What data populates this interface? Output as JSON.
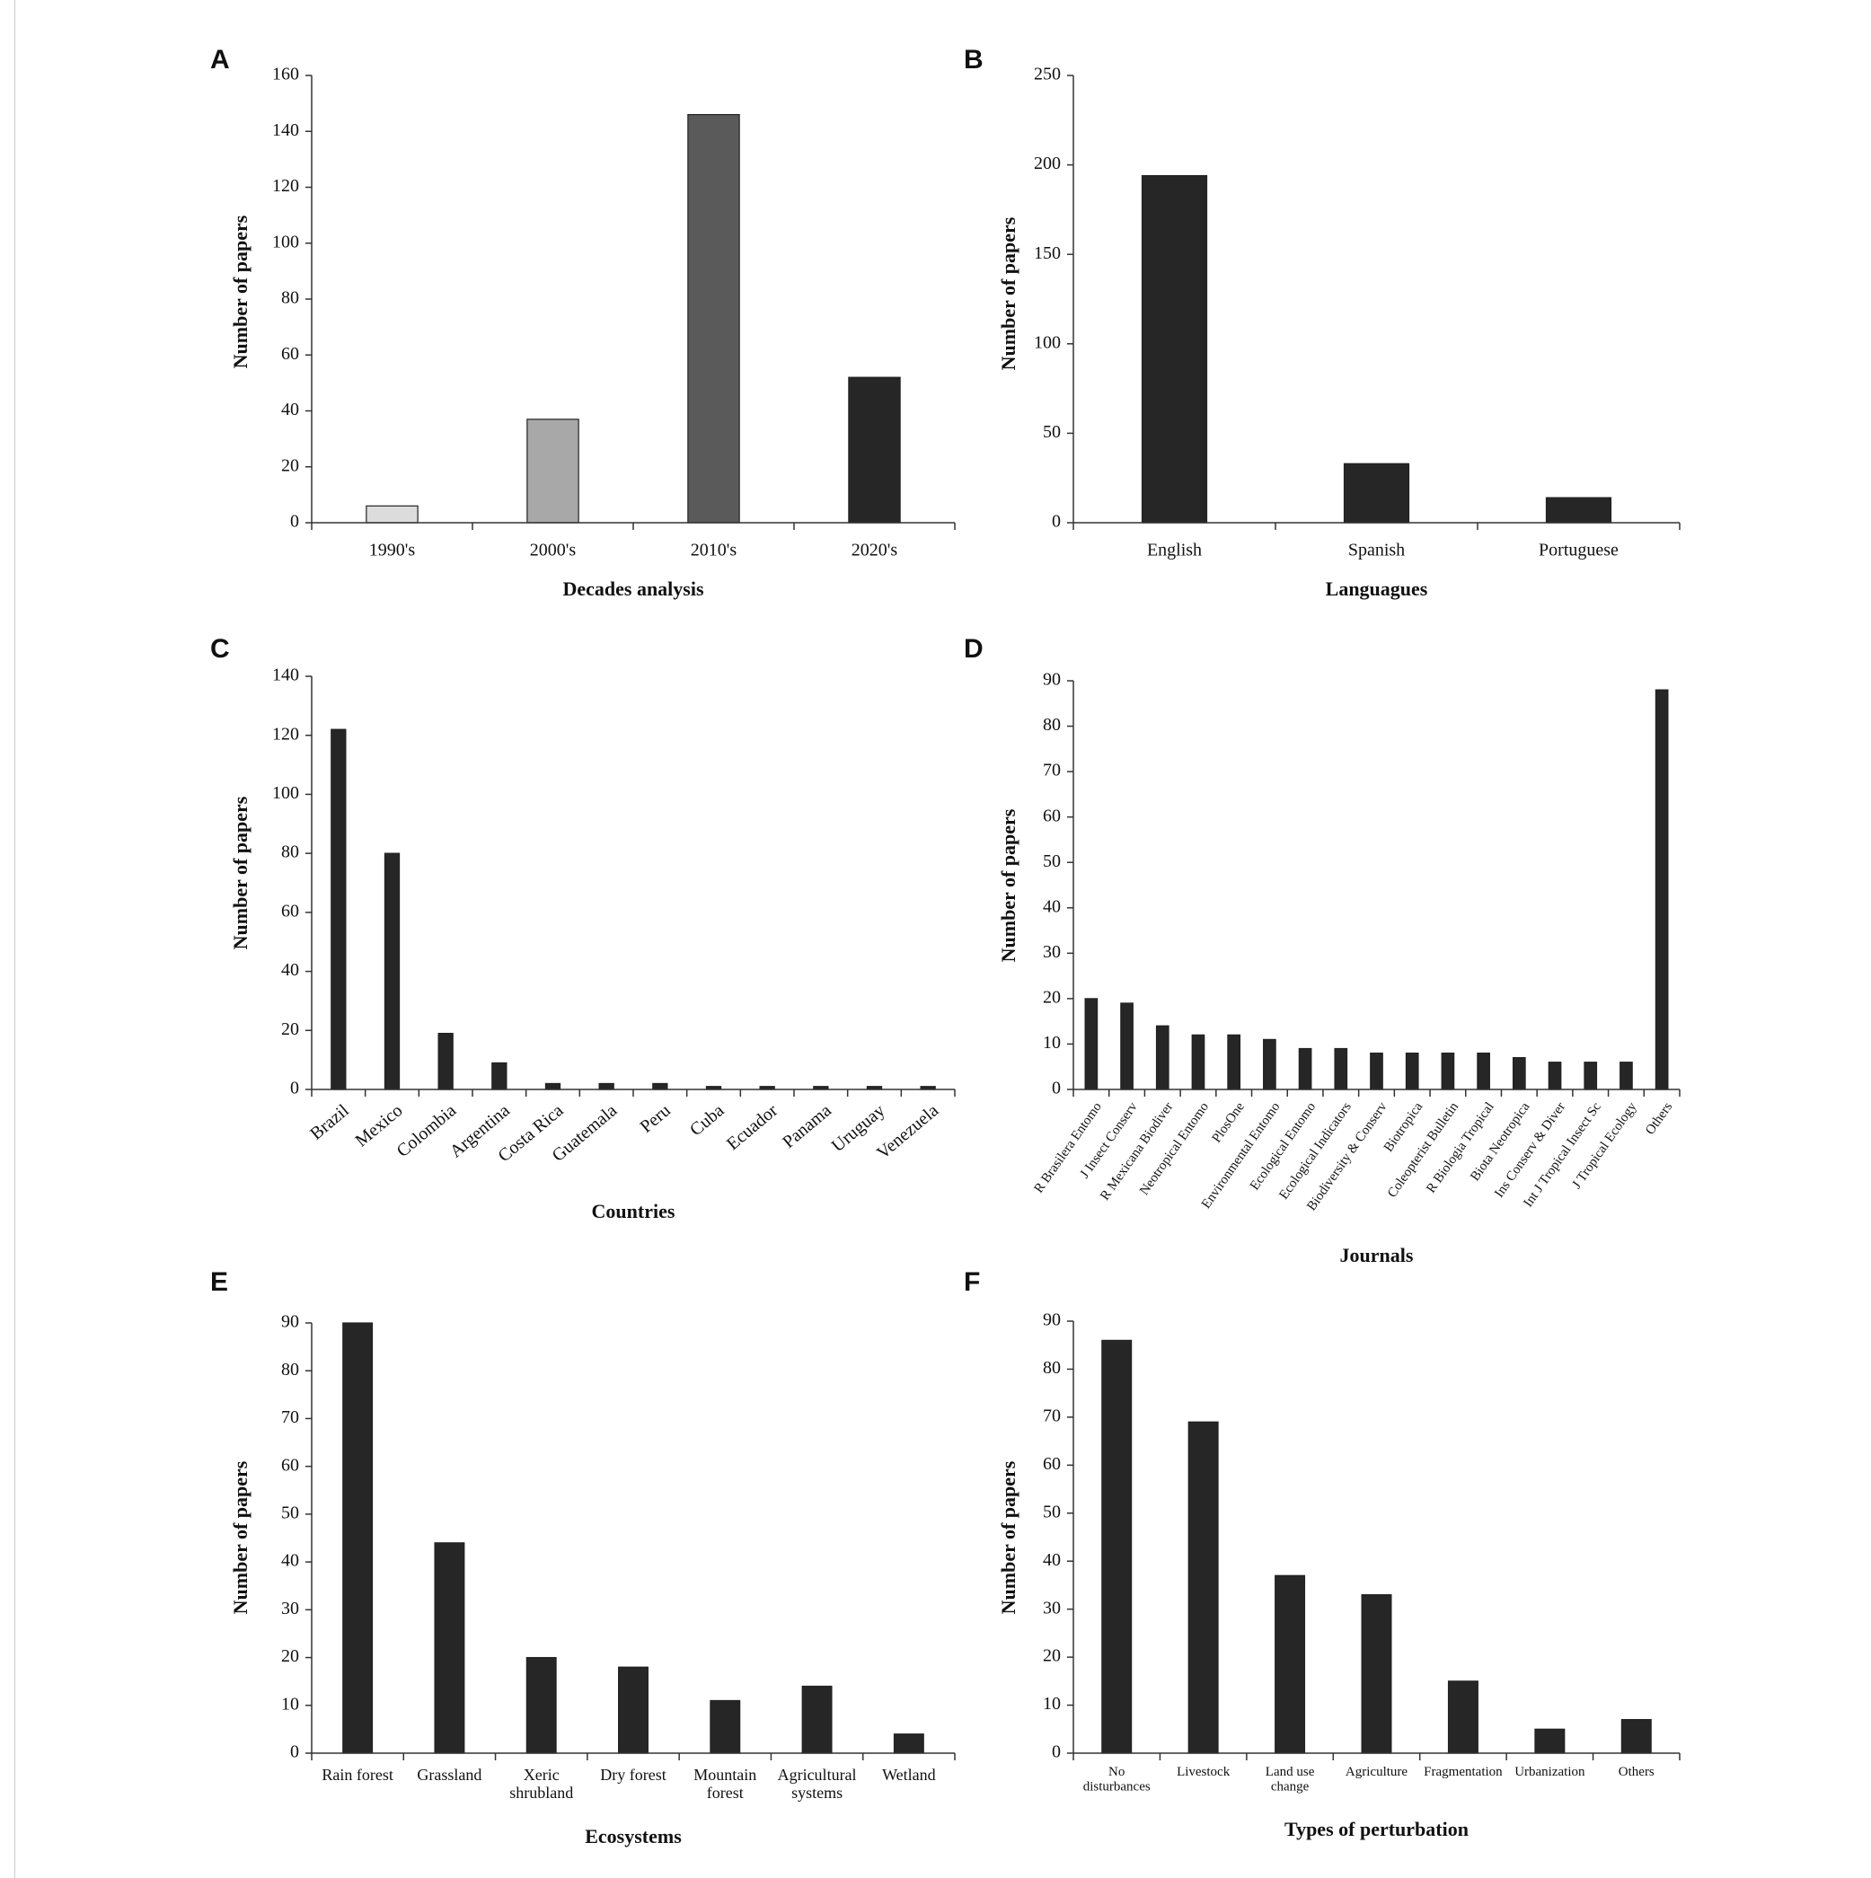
{
  "chart_data": [
    {
      "panel": "A",
      "type": "bar",
      "categories": [
        "1990's",
        "2000's",
        "2010's",
        "2020's"
      ],
      "values": [
        6,
        37,
        146,
        52
      ],
      "colors": [
        "#dcdcdc",
        "#a8a8a8",
        "#5a5a5a",
        "#262626"
      ],
      "xlabel": "Decades analysis",
      "ylabel": "Number of papers",
      "ylim": [
        0,
        160
      ],
      "yticks": [
        0,
        20,
        40,
        60,
        80,
        100,
        120,
        140,
        160
      ],
      "grid": false
    },
    {
      "panel": "B",
      "type": "bar",
      "categories": [
        "English",
        "Spanish",
        "Portuguese"
      ],
      "values": [
        194,
        33,
        14
      ],
      "xlabel": "Languagues",
      "ylabel": "Number of papers",
      "ylim": [
        0,
        250
      ],
      "yticks": [
        0,
        50,
        100,
        150,
        200,
        250
      ],
      "grid": false
    },
    {
      "panel": "C",
      "type": "bar",
      "categories": [
        "Brazil",
        "Mexico",
        "Colombia",
        "Argentina",
        "Costa Rica",
        "Guatemala",
        "Peru",
        "Cuba",
        "Ecuador",
        "Panama",
        "Uruguay",
        "Venezuela"
      ],
      "values": [
        122,
        80,
        19,
        9,
        2,
        2,
        2,
        1,
        1,
        1,
        1,
        1
      ],
      "xlabel": "Countries",
      "ylabel": "Number of papers",
      "ylim": [
        0,
        140
      ],
      "yticks": [
        0,
        20,
        40,
        60,
        80,
        100,
        120,
        140
      ],
      "grid": false
    },
    {
      "panel": "D",
      "type": "bar",
      "categories": [
        "R Brasilera Entomo",
        "J Insect Conserv",
        "R Mexicana Biodiver",
        "Neotropical Entomo",
        "PlosOne",
        "Environmental Entomo",
        "Ecological Entomo",
        "Ecological Indicators",
        "Biodiversity & Conserv",
        "Biotropica",
        "Coleopterist Bulletin",
        "R Biologia Tropical",
        "Biota Neotropica",
        "Ins Conserv & Diver",
        "Int J Tropical Insect Sc",
        "J Tropical Ecology",
        "Others"
      ],
      "values": [
        20,
        19,
        14,
        12,
        12,
        11,
        9,
        9,
        8,
        8,
        8,
        8,
        7,
        6,
        6,
        6,
        88
      ],
      "xlabel": "Journals",
      "ylabel": "Number of papers",
      "ylim": [
        0,
        90
      ],
      "yticks": [
        0,
        10,
        20,
        30,
        40,
        50,
        60,
        70,
        80,
        90
      ],
      "grid": false
    },
    {
      "panel": "E",
      "type": "bar",
      "categories": [
        "Rain forest",
        "Grassland",
        "Xeric shrubland",
        "Dry forest",
        "Mountain forest",
        "Agricultural systems",
        "Wetland"
      ],
      "values": [
        90,
        44,
        20,
        18,
        11,
        14,
        4
      ],
      "xlabel": "Ecosystems",
      "ylabel": "Number of papers",
      "ylim": [
        0,
        90
      ],
      "yticks": [
        0,
        10,
        20,
        30,
        40,
        50,
        60,
        70,
        80,
        90
      ],
      "grid": false
    },
    {
      "panel": "F",
      "type": "bar",
      "categories": [
        "No disturbances",
        "Livestock",
        "Land use change",
        "Agriculture",
        "Fragmentation",
        "Urbanization",
        "Others"
      ],
      "values": [
        86,
        69,
        37,
        33,
        15,
        5,
        7
      ],
      "xlabel": "Types of perturbation",
      "ylabel": "Number of papers",
      "ylim": [
        0,
        90
      ],
      "yticks": [
        0,
        10,
        20,
        30,
        40,
        50,
        60,
        70,
        80,
        90
      ],
      "grid": false
    }
  ]
}
